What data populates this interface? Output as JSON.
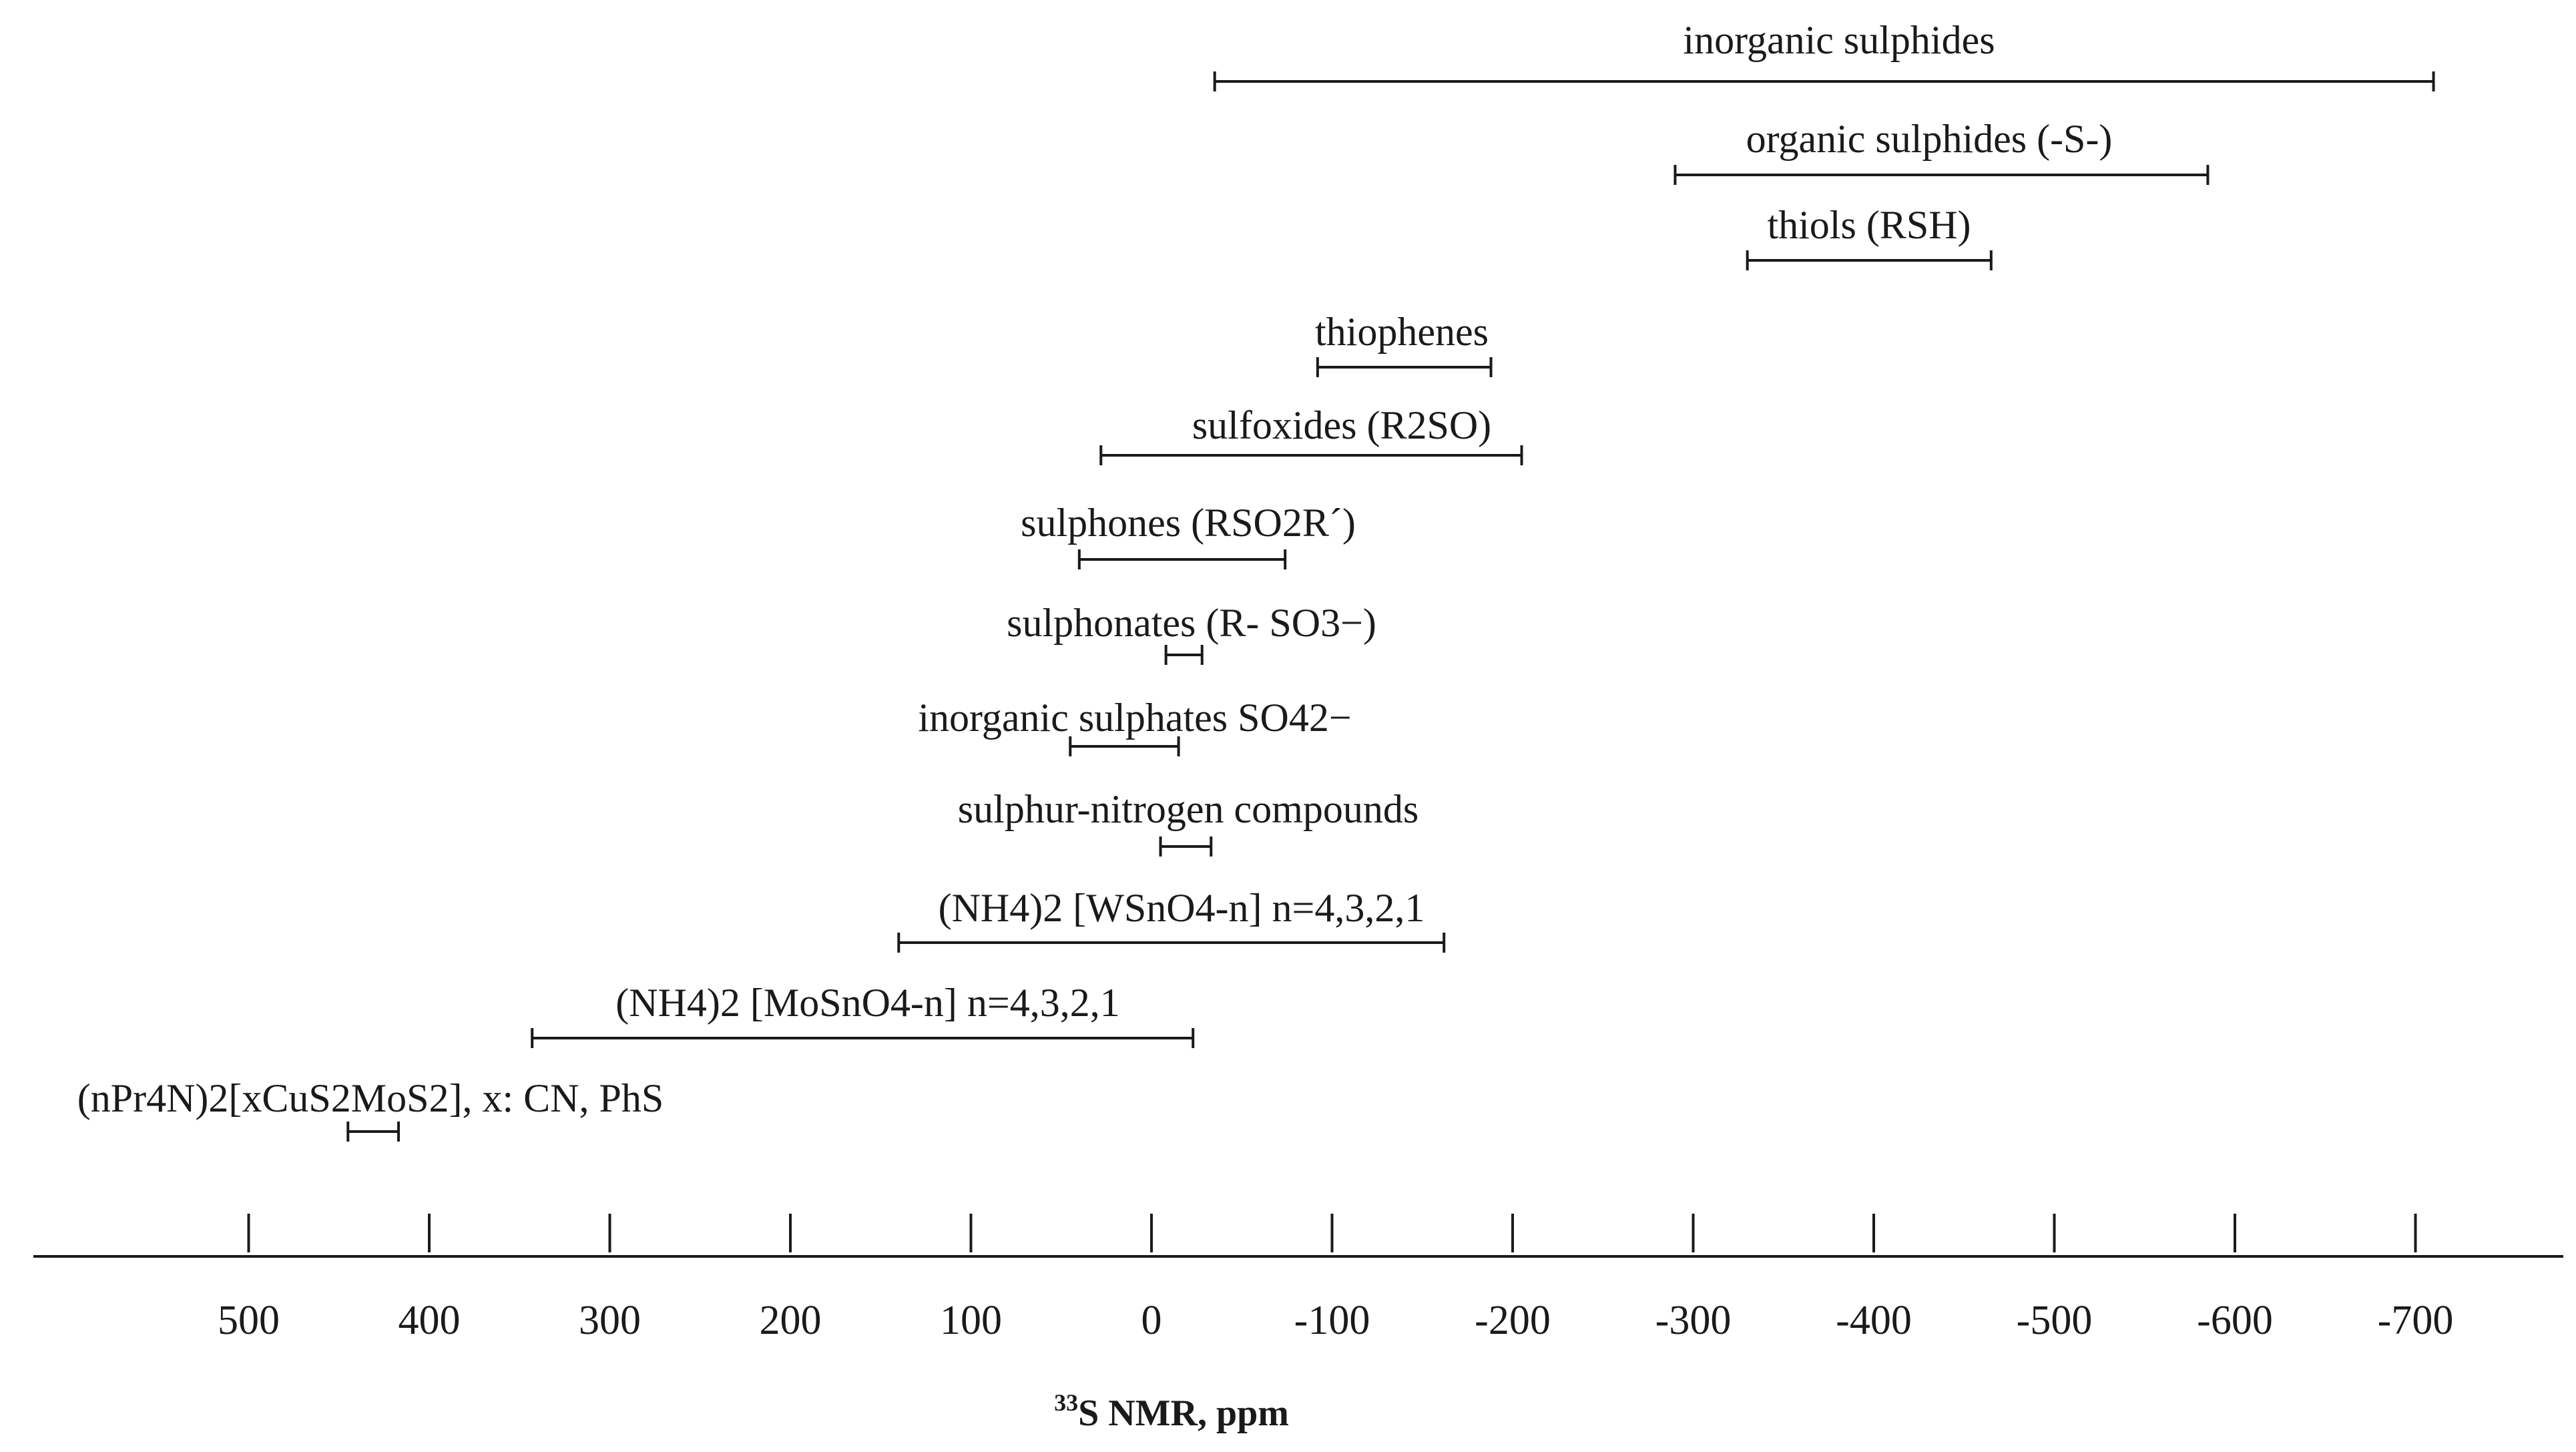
{
  "chart_data": {
    "type": "range",
    "xlabel": "33S NMR, ppm",
    "xlabel_parts": {
      "isotope": "33",
      "rest": "S NMR, ppm"
    },
    "xlim": [
      620,
      -760
    ],
    "x_reversed": true,
    "tick_values": [
      500,
      400,
      300,
      200,
      100,
      0,
      -100,
      -200,
      -300,
      -400,
      -500,
      -600,
      -700
    ],
    "tick_labels": [
      "500",
      "400",
      "300",
      "200",
      "100",
      "0",
      "-100",
      "-200",
      "-300",
      "-400",
      "-500",
      "-600",
      "-700"
    ],
    "ranges": [
      {
        "label": "inorganic sulphides",
        "from": -35,
        "to": -710
      },
      {
        "label": "organic sulphides (-S-)",
        "from": -290,
        "to": -585
      },
      {
        "label": "thiols (RSH)",
        "from": -330,
        "to": -465
      },
      {
        "label": "thiophenes",
        "from": -92,
        "to": -188
      },
      {
        "label": "sulfoxides (R2SO)",
        "from": 28,
        "to": -205
      },
      {
        "label": "sulphones (RSO2R´)",
        "from": 40,
        "to": -74
      },
      {
        "label": "sulphonates (R- SO3−)",
        "from": -8,
        "to": -28
      },
      {
        "label": "inorganic sulphates SO42−",
        "from": 45,
        "to": -15
      },
      {
        "label": "sulphur-nitrogen compounds",
        "from": -5,
        "to": -33
      },
      {
        "label": "(NH4)2 [WSnO4-n] n=4,3,2,1",
        "from": 140,
        "to": -162
      },
      {
        "label": "(NH4)2 [MoSnO4-n] n=4,3,2,1",
        "from": 343,
        "to": -23
      },
      {
        "label": "(nPr4N)2[xCuS2MoS2], x: CN, PhS",
        "from": 445,
        "to": 417
      }
    ]
  }
}
